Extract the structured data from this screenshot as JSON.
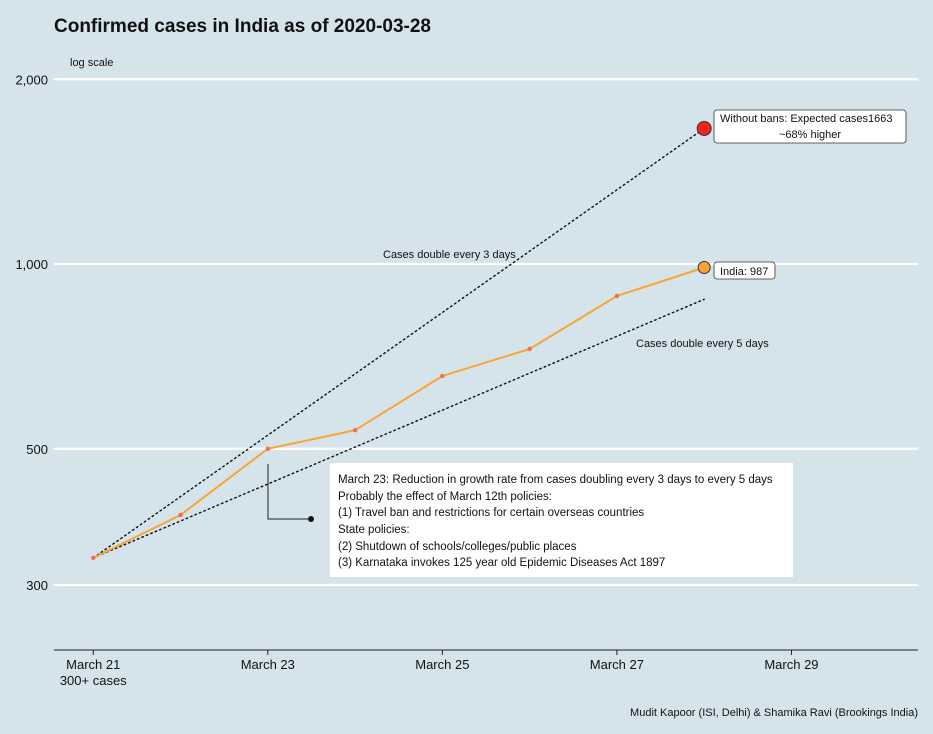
{
  "chart_data": {
    "type": "line",
    "title": "Confirmed cases in India as of 2020-03-28",
    "yscale_note": "log scale",
    "yscale": "log",
    "ylim": [
      235,
      2150
    ],
    "yticks": [
      300,
      500,
      1000,
      2000
    ],
    "ytick_labels": [
      "300",
      "500",
      "1,000",
      "2,000"
    ],
    "xlim": [
      20.55,
      30.45
    ],
    "xticks": [
      21,
      23,
      25,
      27,
      29
    ],
    "xtick_labels": [
      [
        "March 21",
        "300+ cases"
      ],
      [
        "March 23"
      ],
      [
        "March 25"
      ],
      [
        "March 27"
      ],
      [
        "March 29"
      ]
    ],
    "series": [
      {
        "name": "India",
        "color": "#f9a431",
        "x": [
          21,
          22,
          23,
          24,
          25,
          26,
          27,
          28
        ],
        "values": [
          332,
          390,
          500,
          536,
          657,
          727,
          887,
          987
        ]
      }
    ],
    "reference_lines": [
      {
        "label": "Cases double every 3 days",
        "x": [
          21,
          28
        ],
        "values": [
          332,
          1663
        ]
      },
      {
        "label": "Cases double every 5 days",
        "x": [
          21,
          28
        ],
        "values": [
          332,
          876
        ]
      }
    ],
    "callouts": [
      {
        "label": "Without bans: Expected cases1663",
        "sublabel": "~68% higher",
        "x": 28,
        "value": 1663,
        "color": "#f5241a"
      },
      {
        "label": "India: 987",
        "x": 28,
        "value": 987,
        "color": "#f9a431"
      }
    ],
    "annotation": {
      "lines": [
        "March 23: Reduction in growth rate from cases doubling every 3 days to every 5 days",
        "Probably the effect of March 12th policies:",
        "(1) Travel ban and restrictions for certain overseas countries",
        "State policies:",
        "(2) Shutdown of schools/colleges/public places",
        "(3) Karnataka invokes 125 year old Epidemic Diseases Act 1897"
      ]
    },
    "caption": "Mudit Kapoor (ISI, Delhi) & Shamika Ravi (Brookings India)",
    "colors": {
      "background": "#d5e4eb",
      "grid": "#ffffff",
      "line": "#f9a431",
      "point": "#f26b5b"
    }
  }
}
